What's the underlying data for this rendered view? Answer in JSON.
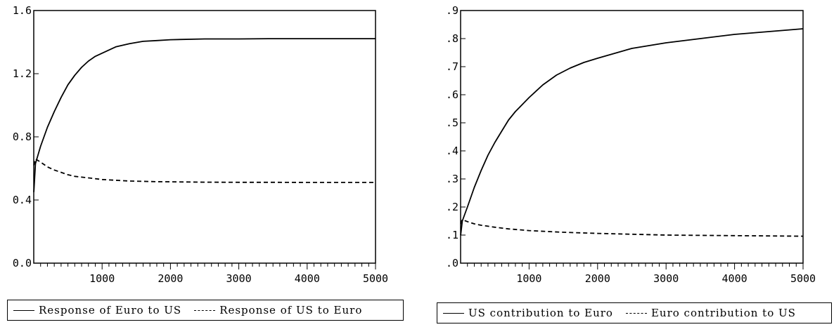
{
  "chart_data": [
    {
      "type": "line",
      "title": "",
      "xlabel": "",
      "ylabel": "",
      "xlim": [
        0,
        5000
      ],
      "ylim": [
        0,
        1.6
      ],
      "x_ticks": [
        1000,
        2000,
        3000,
        4000,
        5000
      ],
      "x_tick_labels": [
        "1000",
        "2000",
        "3000",
        "4000",
        "5000"
      ],
      "y_ticks": [
        0,
        0.4,
        0.8,
        1.2,
        1.6
      ],
      "y_tick_labels": [
        "0.0",
        "0.4",
        "0.8",
        "1.2",
        "1.6"
      ],
      "grid": false,
      "legend_position": "bottom",
      "series": [
        {
          "name": "Response of Euro to US",
          "style": "solid",
          "x": [
            1,
            25,
            100,
            200,
            300,
            400,
            500,
            600,
            700,
            800,
            900,
            1000,
            1200,
            1400,
            1600,
            1800,
            2000,
            2500,
            3000,
            3500,
            4000,
            4500,
            5000
          ],
          "y": [
            0.45,
            0.63,
            0.74,
            0.86,
            0.96,
            1.05,
            1.13,
            1.19,
            1.24,
            1.28,
            1.31,
            1.33,
            1.37,
            1.39,
            1.405,
            1.41,
            1.415,
            1.42,
            1.42,
            1.422,
            1.422,
            1.422,
            1.422
          ]
        },
        {
          "name": "Response of US to Euro",
          "style": "dashed",
          "x": [
            1,
            25,
            100,
            200,
            300,
            400,
            500,
            600,
            700,
            800,
            1000,
            1200,
            1400,
            1600,
            1800,
            2000,
            2500,
            3000,
            3500,
            4000,
            4500,
            5000
          ],
          "y": [
            0.62,
            0.66,
            0.64,
            0.61,
            0.59,
            0.575,
            0.56,
            0.55,
            0.545,
            0.54,
            0.53,
            0.525,
            0.52,
            0.518,
            0.516,
            0.515,
            0.513,
            0.512,
            0.512,
            0.511,
            0.511,
            0.511
          ]
        }
      ]
    },
    {
      "type": "line",
      "title": "",
      "xlabel": "",
      "ylabel": "",
      "xlim": [
        0,
        5000
      ],
      "ylim": [
        0,
        0.9
      ],
      "x_ticks": [
        1000,
        2000,
        3000,
        4000,
        5000
      ],
      "x_tick_labels": [
        "1000",
        "2000",
        "3000",
        "4000",
        "5000"
      ],
      "y_ticks": [
        0,
        0.1,
        0.2,
        0.3,
        0.4,
        0.5,
        0.6,
        0.7,
        0.8,
        0.9
      ],
      "y_tick_labels": [
        ".0",
        ".1",
        ".2",
        ".3",
        ".4",
        ".5",
        ".6",
        ".7",
        ".8",
        ".9"
      ],
      "grid": false,
      "legend_position": "bottom",
      "series": [
        {
          "name": "US contribution to Euro",
          "style": "solid",
          "x": [
            1,
            25,
            100,
            200,
            300,
            400,
            500,
            600,
            700,
            800,
            900,
            1000,
            1200,
            1400,
            1600,
            1800,
            2000,
            2500,
            3000,
            3500,
            4000,
            4500,
            5000
          ],
          "y": [
            0.1,
            0.15,
            0.2,
            0.27,
            0.33,
            0.385,
            0.43,
            0.47,
            0.51,
            0.54,
            0.565,
            0.59,
            0.635,
            0.67,
            0.695,
            0.715,
            0.73,
            0.765,
            0.785,
            0.8,
            0.815,
            0.825,
            0.835
          ]
        },
        {
          "name": "Euro contribution to US",
          "style": "dashed",
          "x": [
            1,
            25,
            100,
            200,
            300,
            500,
            700,
            1000,
            1500,
            2000,
            2500,
            3000,
            3500,
            4000,
            4500,
            5000
          ],
          "y": [
            0.14,
            0.155,
            0.148,
            0.14,
            0.135,
            0.128,
            0.122,
            0.116,
            0.11,
            0.106,
            0.103,
            0.1,
            0.099,
            0.098,
            0.097,
            0.096
          ]
        }
      ]
    }
  ]
}
